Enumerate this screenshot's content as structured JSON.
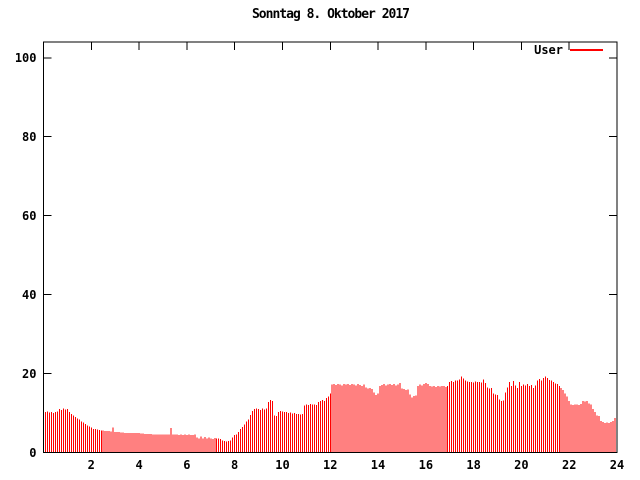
{
  "title": "Sonntag 8. Oktober 2017",
  "legend": {
    "label": "User",
    "color": "#ff0000",
    "position": "top-right-inside"
  },
  "colors": {
    "series": "#ff0000",
    "axis": "#000000",
    "background": "#ffffff",
    "text": "#000000"
  },
  "chart_data": {
    "type": "bar",
    "subtype": "impulses",
    "title": "Sonntag 8. Oktober 2017",
    "series_name": "User",
    "color": "#ff0000",
    "xlabel": "",
    "ylabel": "",
    "x_unit": "hour of day",
    "sample_interval_minutes": 5,
    "first_sample_minutes": 5,
    "xlim": [
      0,
      24
    ],
    "ylim": [
      0,
      104
    ],
    "x_ticks": [
      2,
      4,
      6,
      8,
      10,
      12,
      14,
      16,
      18,
      20,
      22,
      24
    ],
    "y_ticks": [
      0,
      20,
      40,
      60,
      80,
      100
    ],
    "grid": false,
    "values": [
      10.2,
      10.4,
      10.1,
      10.3,
      10.0,
      10.2,
      10.4,
      11.0,
      10.8,
      11.2,
      10.9,
      11.0,
      10.2,
      9.8,
      9.4,
      9.0,
      8.6,
      8.3,
      7.9,
      7.6,
      7.2,
      6.9,
      6.6,
      6.3,
      6.0,
      5.9,
      5.8,
      5.7,
      5.6,
      5.6,
      5.5,
      5.4,
      5.4,
      5.3,
      6.3,
      5.2,
      5.2,
      5.2,
      5.1,
      5.1,
      5.0,
      5.0,
      5.0,
      4.9,
      4.9,
      4.9,
      4.9,
      4.9,
      4.8,
      4.8,
      4.7,
      4.7,
      4.7,
      4.7,
      4.6,
      4.6,
      4.6,
      4.6,
      4.6,
      4.6,
      4.5,
      4.6,
      4.5,
      6.2,
      4.6,
      4.5,
      4.5,
      4.4,
      4.5,
      4.4,
      4.5,
      4.4,
      4.5,
      4.4,
      4.4,
      4.5,
      3.8,
      3.5,
      4.0,
      3.6,
      3.9,
      3.5,
      3.8,
      3.6,
      3.4,
      3.7,
      3.5,
      3.6,
      3.4,
      3.1,
      2.9,
      2.8,
      2.9,
      3.0,
      3.8,
      4.4,
      4.5,
      5.2,
      5.9,
      6.5,
      7.1,
      7.8,
      8.4,
      9.5,
      10.5,
      11.0,
      11.2,
      11.0,
      10.8,
      11.1,
      10.9,
      11.2,
      12.8,
      13.3,
      13.0,
      9.4,
      9.2,
      10.3,
      10.5,
      10.4,
      10.2,
      10.2,
      10.0,
      10.1,
      9.9,
      10.0,
      9.8,
      9.7,
      9.6,
      9.7,
      11.9,
      12.2,
      12.0,
      12.3,
      12.1,
      12.2,
      12.0,
      12.8,
      13.1,
      13.3,
      13.0,
      13.8,
      14.2,
      15.0,
      17.2,
      17.3,
      17.1,
      17.3,
      17.2,
      17.0,
      17.3,
      17.2,
      17.4,
      17.1,
      17.3,
      17.2,
      17.0,
      17.3,
      17.1,
      16.9,
      17.2,
      16.5,
      16.2,
      16.4,
      16.1,
      15.2,
      14.6,
      15.0,
      16.8,
      17.1,
      17.3,
      17.0,
      17.2,
      17.4,
      17.1,
      17.3,
      17.0,
      17.2,
      17.6,
      16.2,
      16.1,
      15.8,
      16.0,
      14.7,
      13.9,
      14.3,
      14.4,
      16.8,
      17.2,
      17.0,
      17.4,
      17.6,
      17.3,
      16.9,
      16.7,
      16.8,
      16.6,
      16.9,
      16.7,
      16.8,
      16.9,
      16.6,
      16.8,
      17.8,
      18.1,
      17.9,
      18.2,
      18.3,
      18.5,
      19.2,
      18.8,
      18.2,
      18.0,
      17.8,
      17.9,
      17.7,
      18.0,
      17.8,
      17.9,
      17.7,
      18.5,
      17.6,
      16.5,
      16.2,
      16.4,
      15.0,
      14.7,
      14.6,
      13.4,
      13.0,
      13.2,
      15.2,
      16.5,
      17.8,
      16.8,
      18.1,
      17.0,
      16.3,
      17.9,
      16.8,
      17.2,
      17.0,
      17.3,
      16.9,
      17.1,
      16.4,
      17.0,
      18.2,
      18.6,
      18.3,
      18.9,
      19.3,
      18.9,
      18.4,
      18.2,
      17.8,
      17.5,
      17.3,
      16.9,
      16.3,
      15.8,
      15.0,
      14.2,
      13.1,
      12.2,
      12.0,
      12.2,
      12.1,
      12.0,
      12.3,
      13.1,
      12.9,
      13.0,
      12.4,
      12.2,
      11.0,
      10.2,
      9.4,
      9.2,
      8.0,
      7.7,
      7.5,
      7.6,
      7.5,
      7.7,
      8.0,
      8.7,
      9.3
    ]
  }
}
